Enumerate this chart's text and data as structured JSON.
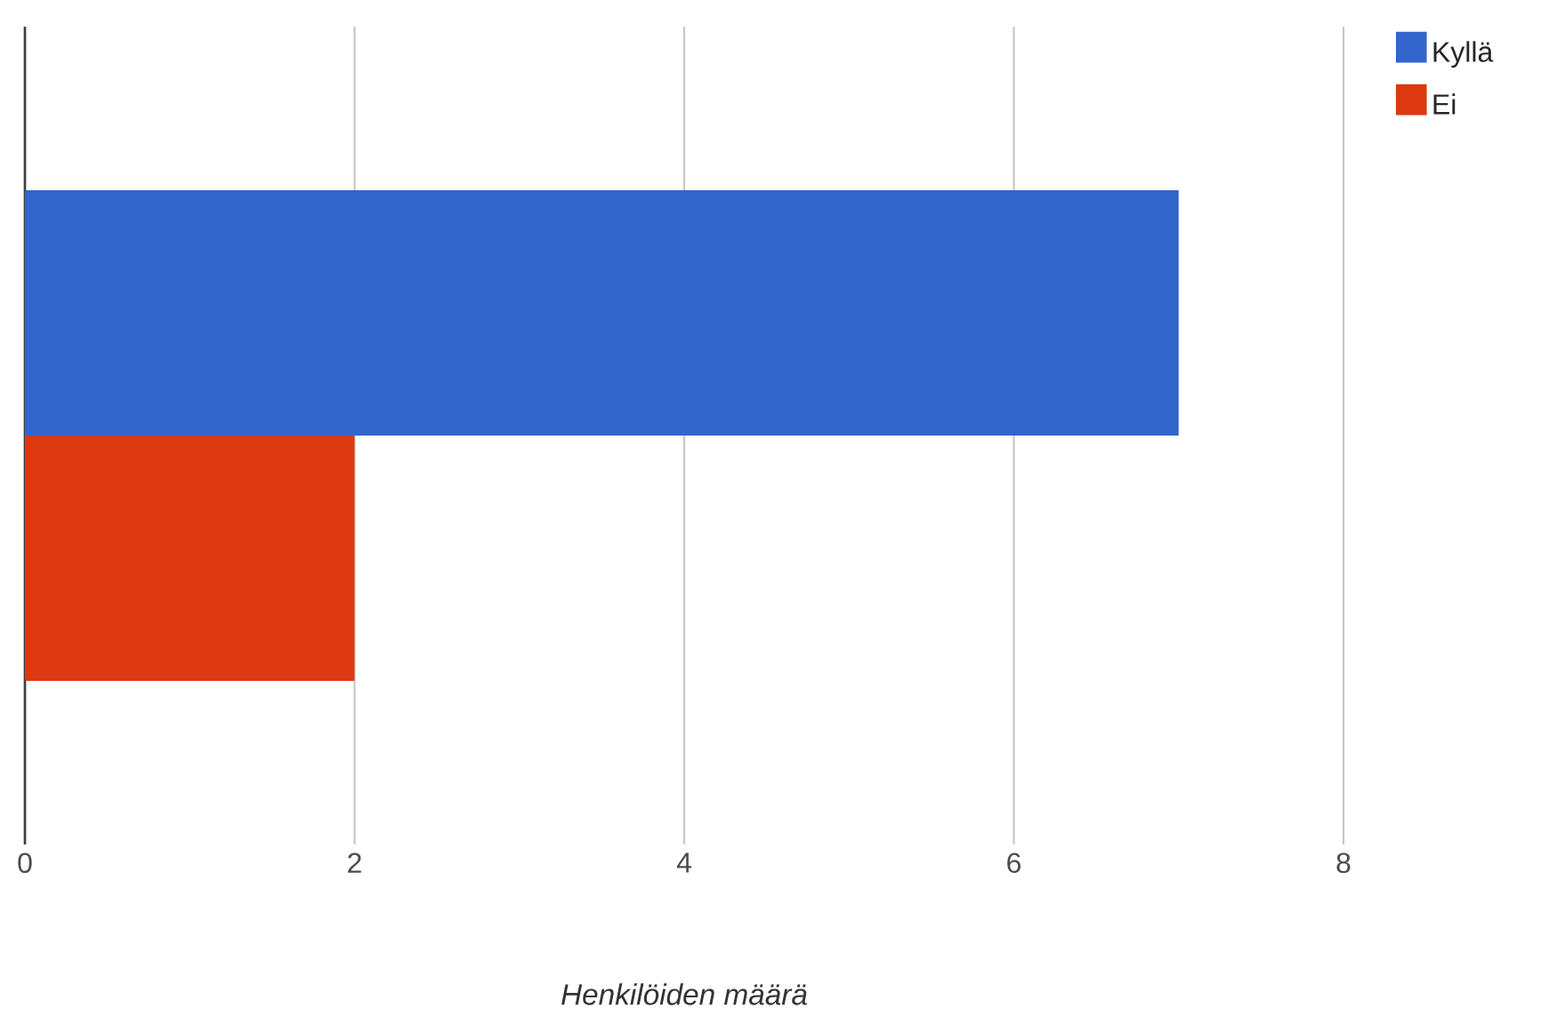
{
  "chart_data": {
    "type": "bar",
    "orientation": "horizontal",
    "xlabel": "Henkilöiden määrä",
    "categories": [
      null
    ],
    "series": [
      {
        "name": "Kyllä",
        "color": "#3366cc",
        "values": [
          7
        ]
      },
      {
        "name": "Ei",
        "color": "#dc3912",
        "values": [
          2
        ]
      }
    ],
    "xlim": [
      0,
      8
    ],
    "xticks": [
      0,
      2,
      4,
      6,
      8
    ],
    "grid": "x",
    "legend": "top right"
  }
}
